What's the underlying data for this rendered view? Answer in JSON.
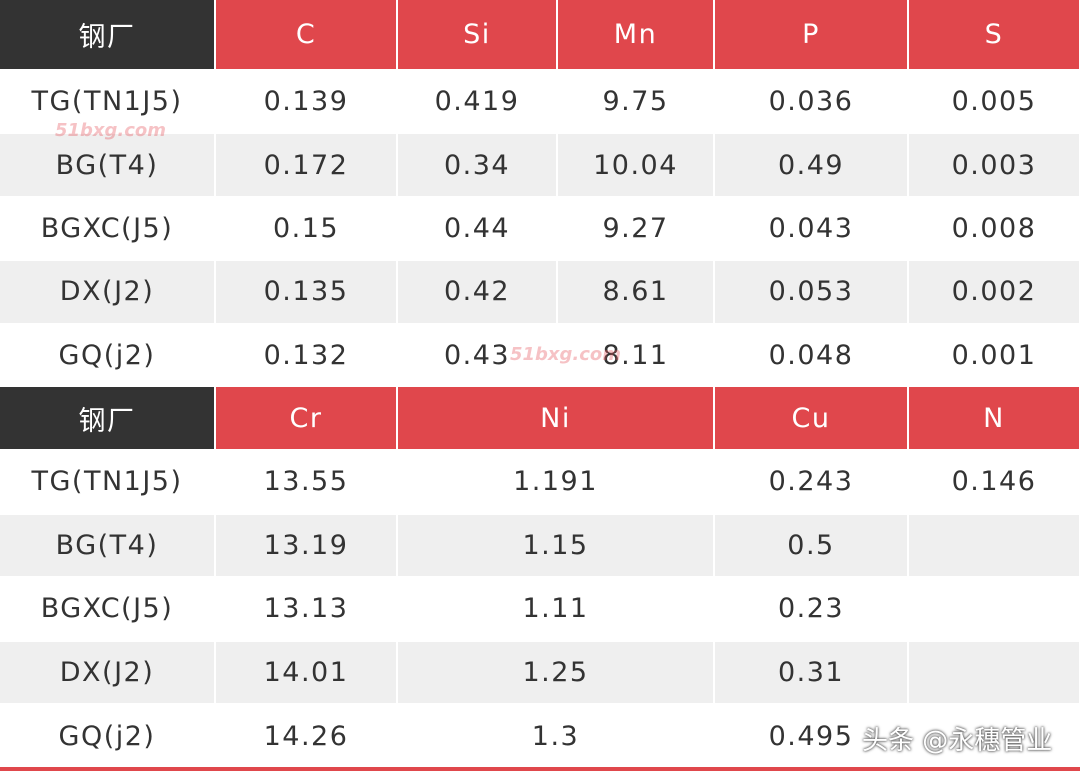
{
  "tables": [
    {
      "header": [
        "钢厂",
        "C",
        "Si",
        "Mn",
        "P",
        "S"
      ],
      "rows": [
        [
          "TG(TN1J5)",
          "0.139",
          "0.419",
          "9.75",
          "0.036",
          "0.005"
        ],
        [
          "BG(T4)",
          "0.172",
          "0.34",
          "10.04",
          "0.49",
          "0.003"
        ],
        [
          "BGXC(J5)",
          "0.15",
          "0.44",
          "9.27",
          "0.043",
          "0.008"
        ],
        [
          "DX(J2)",
          "0.135",
          "0.42",
          "8.61",
          "0.053",
          "0.002"
        ],
        [
          "GQ(j2)",
          "0.132",
          "0.43",
          "8.11",
          "0.048",
          "0.001"
        ]
      ]
    },
    {
      "header": [
        "钢厂",
        "Cr",
        "Ni",
        "Cu",
        "N"
      ],
      "rows": [
        [
          "TG(TN1J5)",
          "13.55",
          "1.191",
          "0.243",
          "0.146"
        ],
        [
          "BG(T4)",
          "13.19",
          "1.15",
          "0.5"
        ],
        [
          "BGXC(J5)",
          "13.13",
          "1.11",
          "0.23"
        ],
        [
          "DX(J2)",
          "14.01",
          "1.25",
          "0.31"
        ],
        [
          "GQ(j2)",
          "14.26",
          "1.3",
          "0.495"
        ]
      ]
    }
  ],
  "watermarks": [
    "51bxg.com",
    "头条 @永穗管业"
  ]
}
